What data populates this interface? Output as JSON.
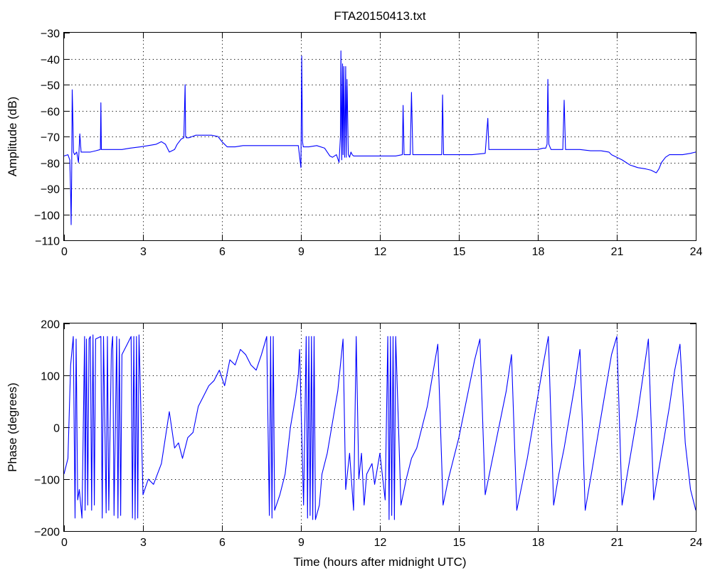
{
  "chart_data": [
    {
      "type": "line",
      "title": "FTA20150413.txt",
      "xlabel": "",
      "ylabel": "Amplitude (dB)",
      "xlim": [
        0,
        24
      ],
      "ylim": [
        -110,
        -30
      ],
      "xticks": [
        "0",
        "3",
        "6",
        "9",
        "12",
        "15",
        "18",
        "21",
        "24"
      ],
      "yticks": [
        "−30",
        "−40",
        "−50",
        "−60",
        "−70",
        "−80",
        "−90",
        "−100",
        "−110"
      ],
      "grid": true,
      "series_color": "#0000ff",
      "series": [
        {
          "x": [
            0,
            0.15,
            0.22,
            0.25,
            0.27,
            0.29,
            0.31,
            0.33,
            0.36,
            0.4,
            0.48,
            0.55,
            0.6,
            0.65,
            0.8,
            1.0,
            1.2,
            1.38,
            1.4,
            1.42,
            1.45,
            1.6,
            1.9,
            2.2,
            2.5,
            2.9,
            3.2,
            3.5,
            3.7,
            3.85,
            4.0,
            4.2,
            4.3,
            4.45,
            4.55,
            4.6,
            4.62,
            4.65,
            4.75,
            5.0,
            5.3,
            5.6,
            5.85,
            6.0,
            6.2,
            6.5,
            6.8,
            7.2,
            7.6,
            8.0,
            8.5,
            8.9,
            9.0,
            9.03,
            9.06,
            9.09,
            9.12,
            9.3,
            9.6,
            9.9,
            10.1,
            10.2,
            10.35,
            10.45,
            10.5,
            10.52,
            10.55,
            10.58,
            10.6,
            10.63,
            10.66,
            10.7,
            10.72,
            10.75,
            10.8,
            10.85,
            10.9,
            10.95,
            11.0,
            11.1,
            11.4,
            11.8,
            12.2,
            12.6,
            12.85,
            12.88,
            12.92,
            13.0,
            13.15,
            13.2,
            13.25,
            13.35,
            13.7,
            14.0,
            14.35,
            14.38,
            14.42,
            14.6,
            15.0,
            15.5,
            16.0,
            16.1,
            16.14,
            16.2,
            16.5,
            17.0,
            17.5,
            18.0,
            18.2,
            18.3,
            18.35,
            18.38,
            18.42,
            18.5,
            18.7,
            18.95,
            19.0,
            19.05,
            19.2,
            19.6,
            20.0,
            20.4,
            20.7,
            20.8,
            21.0,
            21.2,
            21.35,
            21.5,
            21.8,
            22.1,
            22.3,
            22.5,
            22.6,
            22.7,
            22.85,
            23.0,
            23.2,
            23.5,
            23.8,
            24.0
          ],
          "values": [
            -77.5,
            -77,
            -79,
            -92,
            -104,
            -86,
            -52,
            -60,
            -76,
            -77,
            -76,
            -80,
            -69,
            -76,
            -76,
            -76,
            -75.5,
            -75,
            -57,
            -75,
            -75,
            -75,
            -75,
            -75,
            -74.5,
            -74,
            -73.5,
            -73,
            -72,
            -73,
            -76,
            -75,
            -73,
            -71,
            -70.5,
            -50,
            -70,
            -70.5,
            -70.5,
            -69.5,
            -69.5,
            -69.5,
            -70,
            -72,
            -74,
            -74,
            -73.5,
            -73.5,
            -73.5,
            -73.5,
            -73.5,
            -73.5,
            -82,
            -39,
            -72,
            -74,
            -74,
            -74,
            -73.5,
            -74.5,
            -77.5,
            -78,
            -77,
            -80,
            -70,
            -37,
            -79,
            -42,
            -77,
            -43,
            -78,
            -43,
            -78,
            -48,
            -77,
            -78,
            -76,
            -77,
            -77.5,
            -77.5,
            -77.5,
            -77.5,
            -77.5,
            -77.5,
            -77,
            -58,
            -77,
            -77,
            -77,
            -53,
            -77,
            -77,
            -77,
            -77,
            -77,
            -54,
            -77,
            -77,
            -77,
            -77,
            -76.5,
            -63,
            -75,
            -75,
            -75,
            -75,
            -75,
            -75,
            -74.5,
            -74.5,
            -73,
            -48,
            -73,
            -75,
            -75,
            -75,
            -56,
            -75,
            -75,
            -75,
            -75.5,
            -75.5,
            -76,
            -77,
            -78,
            -79,
            -80,
            -81,
            -82,
            -82.5,
            -83,
            -84,
            -82.5,
            -80,
            -78,
            -77,
            -77,
            -77,
            -76.5,
            -76
          ]
        }
      ]
    },
    {
      "type": "line",
      "title": "",
      "xlabel": "Time (hours after midnight UTC)",
      "ylabel": "Phase (degrees)",
      "xlim": [
        0,
        24
      ],
      "ylim": [
        -200,
        200
      ],
      "xticks": [
        "0",
        "3",
        "6",
        "9",
        "12",
        "15",
        "18",
        "21",
        "24"
      ],
      "yticks": [
        "200",
        "100",
        "0",
        "−100",
        "−200"
      ],
      "grid": true,
      "series_color": "#0000ff",
      "series": [
        {
          "x": [
            0,
            0.15,
            0.25,
            0.35,
            0.42,
            0.46,
            0.52,
            0.58,
            0.68,
            0.78,
            0.8,
            0.85,
            0.9,
            0.95,
            1.0,
            1.05,
            1.1,
            1.15,
            1.2,
            1.4,
            1.45,
            1.5,
            1.6,
            1.65,
            1.7,
            1.8,
            1.85,
            1.9,
            2.0,
            2.05,
            2.1,
            2.15,
            2.2,
            2.4,
            2.55,
            2.6,
            2.65,
            2.7,
            2.75,
            2.8,
            2.85,
            3.0,
            3.2,
            3.4,
            3.7,
            4.0,
            4.2,
            4.35,
            4.5,
            4.7,
            4.9,
            5.1,
            5.3,
            5.5,
            5.7,
            5.9,
            6.1,
            6.3,
            6.5,
            6.7,
            6.9,
            7.1,
            7.3,
            7.5,
            7.7,
            7.8,
            7.85,
            7.9,
            7.95,
            8.0,
            8.2,
            8.4,
            8.6,
            8.8,
            8.9,
            8.95,
            9.1,
            9.2,
            9.25,
            9.3,
            9.35,
            9.4,
            9.45,
            9.5,
            9.55,
            9.7,
            9.8,
            10.0,
            10.2,
            10.4,
            10.6,
            10.7,
            10.85,
            11.0,
            11.1,
            11.2,
            11.3,
            11.4,
            11.5,
            11.7,
            11.8,
            12.0,
            12.2,
            12.3,
            12.35,
            12.4,
            12.45,
            12.5,
            12.55,
            12.6,
            12.8,
            13.0,
            13.2,
            13.4,
            13.6,
            13.8,
            14.0,
            14.2,
            14.4,
            14.6,
            14.8,
            15.0,
            15.2,
            15.4,
            15.6,
            15.8,
            16.0,
            16.2,
            16.4,
            16.6,
            16.8,
            17.0,
            17.2,
            17.4,
            17.6,
            17.8,
            18.0,
            18.2,
            18.4,
            18.6,
            18.8,
            19.0,
            19.2,
            19.4,
            19.6,
            19.8,
            20.0,
            20.2,
            20.4,
            20.6,
            20.8,
            21.0,
            21.2,
            21.4,
            21.6,
            21.8,
            22.0,
            22.2,
            22.4,
            22.6,
            22.8,
            23.0,
            23.2,
            23.4,
            23.6,
            23.8,
            24.0
          ],
          "values": [
            -90,
            -60,
            120,
            175,
            -175,
            170,
            -140,
            -120,
            -175,
            175,
            -160,
            170,
            -150,
            170,
            175,
            -160,
            178,
            -150,
            170,
            175,
            -175,
            175,
            -165,
            175,
            -160,
            150,
            175,
            -170,
            175,
            -175,
            170,
            -170,
            140,
            160,
            175,
            -175,
            175,
            -178,
            175,
            -175,
            178,
            -130,
            -100,
            -110,
            -70,
            30,
            -40,
            -30,
            -60,
            -20,
            -10,
            40,
            60,
            80,
            90,
            110,
            80,
            130,
            120,
            150,
            140,
            120,
            110,
            140,
            175,
            -170,
            175,
            -175,
            175,
            -160,
            -130,
            -90,
            0,
            60,
            100,
            150,
            -150,
            175,
            -175,
            175,
            -170,
            175,
            -178,
            175,
            -178,
            -150,
            -90,
            -50,
            10,
            70,
            170,
            -120,
            -50,
            -160,
            175,
            -100,
            -50,
            -150,
            -90,
            -70,
            -110,
            -50,
            -140,
            175,
            -178,
            175,
            -170,
            175,
            -178,
            175,
            -150,
            -100,
            -60,
            -40,
            0,
            40,
            100,
            160,
            -150,
            -100,
            -60,
            -20,
            30,
            80,
            130,
            170,
            -130,
            -80,
            -30,
            20,
            70,
            140,
            -160,
            -110,
            -60,
            0,
            60,
            120,
            175,
            -150,
            -90,
            -40,
            20,
            80,
            150,
            -160,
            -100,
            -40,
            20,
            80,
            140,
            175,
            -150,
            -90,
            -30,
            30,
            100,
            170,
            -140,
            -80,
            -20,
            40,
            110,
            160,
            -30,
            -120,
            -160
          ]
        }
      ]
    }
  ]
}
